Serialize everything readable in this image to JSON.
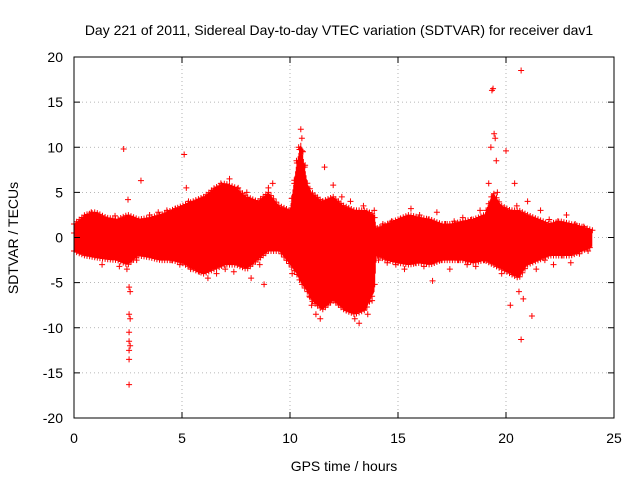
{
  "chart_data": {
    "type": "scatter",
    "title": "Day 221 of 2011, Sidereal Day-to-day VTEC variation (SDTVAR) for receiver dav1",
    "xlabel": "GPS time / hours",
    "ylabel": "SDTVAR / TECUs",
    "xlim": [
      0,
      25
    ],
    "ylim": [
      -20,
      20
    ],
    "xticks": [
      0,
      5,
      10,
      15,
      20,
      25
    ],
    "yticks": [
      -20,
      -15,
      -10,
      -5,
      0,
      5,
      10,
      15,
      20
    ],
    "grid": true,
    "marker": "+",
    "series_color": "#ff0000",
    "series": [
      {
        "name": "SDTVAR",
        "points": [
          [
            0.0,
            0.5
          ],
          [
            0.2,
            -0.8
          ],
          [
            0.4,
            1.5
          ],
          [
            0.6,
            -1.2
          ],
          [
            0.8,
            2.8
          ],
          [
            1.0,
            -2.0
          ],
          [
            1.1,
            2.5
          ],
          [
            1.3,
            -3.0
          ],
          [
            1.5,
            1.8
          ],
          [
            1.7,
            -2.2
          ],
          [
            1.9,
            2.4
          ],
          [
            2.1,
            -3.2
          ],
          [
            2.3,
            9.8
          ],
          [
            2.4,
            2.2
          ],
          [
            2.45,
            -3.5
          ],
          [
            2.5,
            4.2
          ],
          [
            2.55,
            -5.5
          ],
          [
            2.55,
            -8.5
          ],
          [
            2.55,
            -10.5
          ],
          [
            2.55,
            -11.5
          ],
          [
            2.55,
            -12.5
          ],
          [
            2.55,
            -13.5
          ],
          [
            2.55,
            -16.3
          ],
          [
            2.6,
            -6.0
          ],
          [
            2.6,
            -9.0
          ],
          [
            2.6,
            -12.0
          ],
          [
            2.7,
            2.0
          ],
          [
            2.9,
            -2.5
          ],
          [
            3.1,
            6.3
          ],
          [
            3.3,
            -1.8
          ],
          [
            3.5,
            2.5
          ],
          [
            3.7,
            -2.0
          ],
          [
            3.9,
            2.8
          ],
          [
            4.1,
            -2.2
          ],
          [
            4.3,
            3.0
          ],
          [
            4.5,
            -2.5
          ],
          [
            4.7,
            3.2
          ],
          [
            4.9,
            -3.0
          ],
          [
            5.1,
            9.2
          ],
          [
            5.2,
            5.5
          ],
          [
            5.3,
            4.0
          ],
          [
            5.4,
            -3.5
          ],
          [
            5.6,
            3.5
          ],
          [
            5.8,
            -3.8
          ],
          [
            6.0,
            4.0
          ],
          [
            6.2,
            -4.5
          ],
          [
            6.4,
            5.0
          ],
          [
            6.6,
            -4.0
          ],
          [
            6.8,
            6.0
          ],
          [
            7.0,
            -3.5
          ],
          [
            7.2,
            6.5
          ],
          [
            7.4,
            -3.8
          ],
          [
            7.6,
            5.5
          ],
          [
            7.8,
            -3.0
          ],
          [
            8.0,
            5.0
          ],
          [
            8.2,
            -4.5
          ],
          [
            8.4,
            4.0
          ],
          [
            8.6,
            -3.0
          ],
          [
            8.8,
            -5.2
          ],
          [
            9.0,
            5.5
          ],
          [
            9.2,
            6.0
          ],
          [
            9.4,
            3.0
          ],
          [
            9.6,
            -1.5
          ],
          [
            9.8,
            2.5
          ],
          [
            10.0,
            -2.5
          ],
          [
            10.1,
            -4.0
          ],
          [
            10.2,
            6.0
          ],
          [
            10.3,
            8.5
          ],
          [
            10.4,
            10.0
          ],
          [
            10.5,
            12.0
          ],
          [
            10.55,
            11.0
          ],
          [
            10.6,
            9.5
          ],
          [
            10.7,
            8.0
          ],
          [
            10.8,
            -5.5
          ],
          [
            10.9,
            -6.5
          ],
          [
            11.0,
            -7.5
          ],
          [
            11.2,
            -8.5
          ],
          [
            11.4,
            -9.0
          ],
          [
            11.5,
            4.0
          ],
          [
            11.6,
            7.8
          ],
          [
            11.8,
            -7.0
          ],
          [
            12.0,
            5.8
          ],
          [
            12.2,
            -6.0
          ],
          [
            12.4,
            4.5
          ],
          [
            12.6,
            -8.0
          ],
          [
            12.8,
            4.0
          ],
          [
            13.0,
            -9.0
          ],
          [
            13.2,
            -9.5
          ],
          [
            13.4,
            3.5
          ],
          [
            13.6,
            -8.5
          ],
          [
            13.8,
            -7.0
          ],
          [
            13.9,
            3.0
          ],
          [
            14.1,
            -2.5
          ],
          [
            14.3,
            1.5
          ],
          [
            14.5,
            -2.8
          ],
          [
            14.7,
            1.8
          ],
          [
            14.9,
            -3.0
          ],
          [
            15.1,
            2.0
          ],
          [
            15.3,
            -3.5
          ],
          [
            15.6,
            3.2
          ],
          [
            15.8,
            -2.8
          ],
          [
            16.0,
            2.5
          ],
          [
            16.2,
            -3.2
          ],
          [
            16.4,
            2.0
          ],
          [
            16.6,
            -4.8
          ],
          [
            16.8,
            2.8
          ],
          [
            17.0,
            -2.5
          ],
          [
            17.2,
            1.5
          ],
          [
            17.4,
            -3.5
          ],
          [
            17.6,
            1.8
          ],
          [
            17.8,
            -2.5
          ],
          [
            18.0,
            2.2
          ],
          [
            18.2,
            -3.0
          ],
          [
            18.4,
            2.0
          ],
          [
            18.6,
            -3.2
          ],
          [
            18.8,
            3.0
          ],
          [
            19.0,
            -2.5
          ],
          [
            19.2,
            6.0
          ],
          [
            19.3,
            10.0
          ],
          [
            19.35,
            16.3
          ],
          [
            19.4,
            16.5
          ],
          [
            19.45,
            11.5
          ],
          [
            19.5,
            11.0
          ],
          [
            19.55,
            8.5
          ],
          [
            19.6,
            5.0
          ],
          [
            19.8,
            -4.0
          ],
          [
            20.0,
            9.6
          ],
          [
            20.2,
            -7.5
          ],
          [
            20.4,
            6.0
          ],
          [
            20.5,
            3.5
          ],
          [
            20.6,
            -6.0
          ],
          [
            20.7,
            18.5
          ],
          [
            20.7,
            -11.3
          ],
          [
            20.8,
            -6.8
          ],
          [
            21.0,
            4.0
          ],
          [
            21.2,
            -8.7
          ],
          [
            21.4,
            -3.5
          ],
          [
            21.6,
            3.0
          ],
          [
            21.8,
            -2.5
          ],
          [
            22.0,
            2.0
          ],
          [
            22.2,
            -3.0
          ],
          [
            22.4,
            1.8
          ],
          [
            22.6,
            -2.0
          ],
          [
            22.8,
            2.5
          ],
          [
            23.0,
            -2.8
          ],
          [
            23.2,
            1.5
          ],
          [
            23.4,
            -1.8
          ],
          [
            23.6,
            1.2
          ],
          [
            23.8,
            -1.5
          ],
          [
            24.0,
            0.8
          ]
        ],
        "envelope": [
          [
            0.0,
            1.5,
            -1.5
          ],
          [
            0.5,
            2.5,
            -2.0
          ],
          [
            1.0,
            2.8,
            -2.2
          ],
          [
            1.5,
            2.2,
            -2.4
          ],
          [
            2.0,
            2.0,
            -2.5
          ],
          [
            2.5,
            2.5,
            -3.0
          ],
          [
            3.0,
            2.0,
            -2.0
          ],
          [
            3.5,
            2.2,
            -2.2
          ],
          [
            4.0,
            2.5,
            -2.5
          ],
          [
            4.5,
            3.0,
            -2.5
          ],
          [
            5.0,
            3.5,
            -2.8
          ],
          [
            5.5,
            4.0,
            -3.5
          ],
          [
            6.0,
            4.5,
            -4.0
          ],
          [
            6.5,
            5.5,
            -3.5
          ],
          [
            7.0,
            6.0,
            -3.0
          ],
          [
            7.5,
            5.5,
            -3.0
          ],
          [
            8.0,
            4.5,
            -3.5
          ],
          [
            8.5,
            4.0,
            -2.5
          ],
          [
            9.0,
            5.0,
            -1.5
          ],
          [
            9.5,
            3.5,
            -1.5
          ],
          [
            10.0,
            3.0,
            -3.0
          ],
          [
            10.3,
            8.0,
            -4.0
          ],
          [
            10.5,
            10.5,
            -5.0
          ],
          [
            10.8,
            6.0,
            -6.0
          ],
          [
            11.0,
            5.0,
            -7.0
          ],
          [
            11.5,
            4.0,
            -8.0
          ],
          [
            12.0,
            4.5,
            -7.0
          ],
          [
            12.5,
            3.5,
            -8.0
          ],
          [
            13.0,
            3.0,
            -8.5
          ],
          [
            13.5,
            3.0,
            -8.0
          ],
          [
            13.9,
            2.5,
            -6.0
          ],
          [
            14.0,
            1.0,
            -2.0
          ],
          [
            14.5,
            1.5,
            -2.5
          ],
          [
            15.0,
            2.0,
            -2.8
          ],
          [
            15.5,
            2.5,
            -3.0
          ],
          [
            16.0,
            2.2,
            -2.8
          ],
          [
            16.5,
            2.0,
            -3.0
          ],
          [
            17.0,
            1.5,
            -2.5
          ],
          [
            17.5,
            1.5,
            -2.5
          ],
          [
            18.0,
            1.8,
            -2.5
          ],
          [
            18.5,
            2.0,
            -2.8
          ],
          [
            19.0,
            2.5,
            -2.5
          ],
          [
            19.4,
            5.0,
            -3.0
          ],
          [
            19.8,
            3.5,
            -3.5
          ],
          [
            20.2,
            3.0,
            -4.0
          ],
          [
            20.6,
            3.0,
            -4.5
          ],
          [
            21.0,
            2.5,
            -3.0
          ],
          [
            21.5,
            2.0,
            -2.5
          ],
          [
            22.0,
            1.5,
            -2.0
          ],
          [
            22.5,
            1.8,
            -2.0
          ],
          [
            23.0,
            1.5,
            -2.0
          ],
          [
            23.5,
            1.2,
            -1.5
          ],
          [
            24.0,
            0.8,
            -1.0
          ]
        ]
      }
    ]
  }
}
